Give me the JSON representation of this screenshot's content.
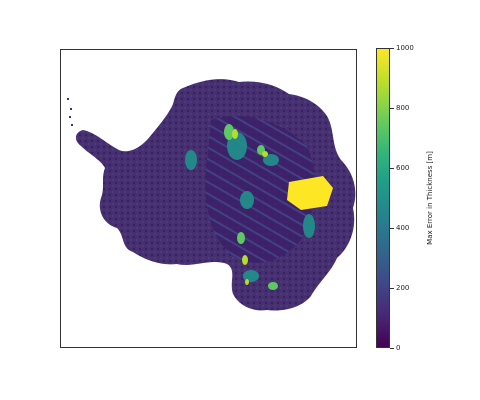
{
  "colorbar": {
    "label": "Max Error in Thickness [m]",
    "ticks": [
      "0",
      "200",
      "400",
      "600",
      "800",
      "1000"
    ],
    "min": 0,
    "max": 1000,
    "colormap": "viridis"
  },
  "map": {
    "region": "Antarctica",
    "land_color": "#46306f",
    "high_error_color": "#fde725"
  }
}
